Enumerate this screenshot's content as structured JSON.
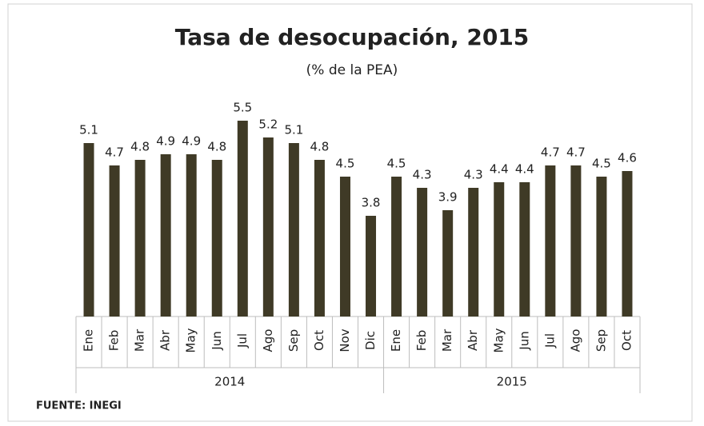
{
  "chart_data": {
    "type": "bar",
    "title": "Tasa de desocupación, 2015",
    "subtitle": "(% de la PEA)",
    "source": "FUENTE: INEGI",
    "color": "#3f3a26",
    "ylim": [
      2,
      6
    ],
    "groups": [
      {
        "name": "2014",
        "categories": [
          "Ene",
          "Feb",
          "Mar",
          "Abr",
          "May",
          "Jun",
          "Jul",
          "Ago",
          "Sep",
          "Oct",
          "Nov",
          "Dic"
        ],
        "values": [
          5.1,
          4.7,
          4.8,
          4.9,
          4.9,
          4.8,
          5.5,
          5.2,
          5.1,
          4.8,
          4.5,
          3.8
        ]
      },
      {
        "name": "2015",
        "categories": [
          "Ene",
          "Feb",
          "Mar",
          "Abr",
          "May",
          "Jun",
          "Jul",
          "Ago",
          "Sep",
          "Oct"
        ],
        "values": [
          4.5,
          4.3,
          3.9,
          4.3,
          4.4,
          4.4,
          4.7,
          4.7,
          4.5,
          4.6
        ]
      }
    ]
  }
}
